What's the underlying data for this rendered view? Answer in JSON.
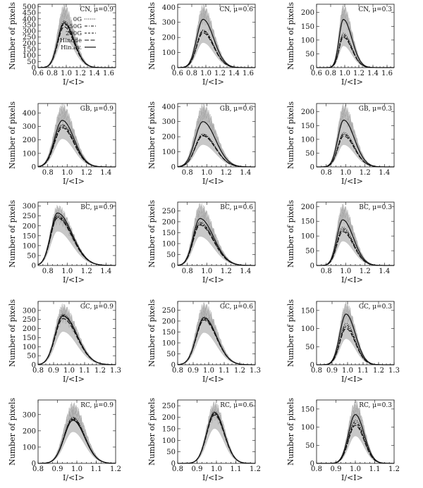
{
  "figure": {
    "legend": [
      {
        "label": "0G",
        "style": "dotted"
      },
      {
        "label": "50G",
        "style": "dash-dot"
      },
      {
        "label": "200G",
        "style": "dashed"
      },
      {
        "label": "Hinode",
        "style": "long-dash"
      },
      {
        "label": "Hin.av.",
        "style": "solid"
      }
    ],
    "colors": {
      "band": "#c8c8c8",
      "lines": "#111111"
    }
  },
  "chart_data": [
    {
      "type": "line",
      "region": "CN",
      "mu_label": "CN, μ=0.9",
      "xlabel": "I/<I>",
      "ylabel": "Number of pixels",
      "xlim": [
        0.6,
        1.7
      ],
      "ylim": [
        0,
        520
      ],
      "xticks": [
        0.6,
        0.8,
        1.0,
        1.2,
        1.4,
        1.6
      ],
      "yticks": [
        0,
        50,
        100,
        150,
        200,
        250,
        300,
        350,
        400,
        450,
        500
      ],
      "ytick_labels": [
        "0",
        "50",
        "100",
        "150",
        "200",
        "250",
        "300",
        "350",
        "400",
        "450",
        "500"
      ],
      "curve": {
        "center": 0.97,
        "sigma_left": 0.09,
        "sigma_right": 0.14
      },
      "peaks": {
        "0G": 385,
        "50G": 375,
        "200G": 355,
        "Hinode": 335,
        "Hin.av.": 365
      },
      "band_max": 510
    },
    {
      "type": "line",
      "region": "CN",
      "mu_label": "CN, μ=0.6",
      "xlabel": "I/<I>",
      "ylabel": "Number of pixels",
      "xlim": [
        0.6,
        1.7
      ],
      "ylim": [
        0,
        420
      ],
      "xticks": [
        0.6,
        0.8,
        1.0,
        1.2,
        1.4,
        1.6
      ],
      "yticks": [
        0,
        100,
        200,
        300,
        400
      ],
      "ytick_labels": [
        "0",
        "100",
        "200",
        "300",
        "400"
      ],
      "curve": {
        "center": 0.96,
        "sigma_left": 0.09,
        "sigma_right": 0.15
      },
      "peaks": {
        "0G": 250,
        "50G": 245,
        "200G": 240,
        "Hinode": 230,
        "Hin.av.": 320
      },
      "band_max": 410
    },
    {
      "type": "line",
      "region": "CN",
      "mu_label": "CN, μ=0.3",
      "xlabel": "I/<I>",
      "ylabel": "Number of pixels",
      "xlim": [
        0.6,
        1.7
      ],
      "ylim": [
        0,
        230
      ],
      "xticks": [
        0.6,
        0.8,
        1.0,
        1.2,
        1.4,
        1.6
      ],
      "yticks": [
        0,
        50,
        100,
        150,
        200
      ],
      "ytick_labels": [
        "0",
        "50",
        "100",
        "150",
        "200"
      ],
      "curve": {
        "center": 0.98,
        "sigma_left": 0.06,
        "sigma_right": 0.12
      },
      "peaks": {
        "0G": 125,
        "50G": 120,
        "200G": 115,
        "Hinode": 110,
        "Hin.av.": 175
      },
      "band_max": 225
    },
    {
      "type": "line",
      "region": "GB",
      "mu_label": "GB, μ=0.9",
      "xlabel": "I/<I>",
      "ylabel": "Number of pixels",
      "xlim": [
        0.7,
        1.5
      ],
      "ylim": [
        0,
        470
      ],
      "xticks": [
        0.8,
        1.0,
        1.2,
        1.4
      ],
      "yticks": [
        0,
        100,
        200,
        300,
        400
      ],
      "ytick_labels": [
        "0",
        "100",
        "200",
        "300",
        "400"
      ],
      "curve": {
        "center": 0.95,
        "sigma_left": 0.08,
        "sigma_right": 0.12
      },
      "peaks": {
        "0G": 315,
        "50G": 310,
        "200G": 300,
        "Hinode": 290,
        "Hin.av.": 345
      },
      "band_max": 460
    },
    {
      "type": "line",
      "region": "GB",
      "mu_label": "GB, μ=0.6",
      "xlabel": "I/<I>",
      "ylabel": "Number of pixels",
      "xlim": [
        0.7,
        1.5
      ],
      "ylim": [
        0,
        420
      ],
      "xticks": [
        0.8,
        1.0,
        1.2,
        1.4
      ],
      "yticks": [
        0,
        100,
        200,
        300,
        400
      ],
      "ytick_labels": [
        "0",
        "100",
        "200",
        "300",
        "400"
      ],
      "curve": {
        "center": 0.96,
        "sigma_left": 0.08,
        "sigma_right": 0.13
      },
      "peaks": {
        "0G": 220,
        "50G": 215,
        "200G": 210,
        "Hinode": 205,
        "Hin.av.": 300
      },
      "band_max": 410
    },
    {
      "type": "line",
      "region": "GB",
      "mu_label": "GB, μ=0.3",
      "xlabel": "I/<I>",
      "ylabel": "Number of pixels",
      "xlim": [
        0.7,
        1.5
      ],
      "ylim": [
        0,
        230
      ],
      "xticks": [
        0.8,
        1.0,
        1.2,
        1.4
      ],
      "yticks": [
        0,
        50,
        100,
        150,
        200
      ],
      "ytick_labels": [
        "0",
        "50",
        "100",
        "150",
        "200"
      ],
      "curve": {
        "center": 0.98,
        "sigma_left": 0.06,
        "sigma_right": 0.11
      },
      "peaks": {
        "0G": 125,
        "50G": 120,
        "200G": 118,
        "Hinode": 112,
        "Hin.av.": 170
      },
      "band_max": 225
    },
    {
      "type": "line",
      "region": "BC",
      "mu_label": "BC, μ=0.9",
      "xlabel": "I/<I>",
      "ylabel": "Number of pixels",
      "xlim": [
        0.7,
        1.5
      ],
      "ylim": [
        0,
        320
      ],
      "xticks": [
        0.8,
        1.0,
        1.2,
        1.4
      ],
      "yticks": [
        0,
        50,
        100,
        150,
        200,
        250,
        300
      ],
      "ytick_labels": [
        "0",
        "50",
        "100",
        "150",
        "200",
        "250",
        "300"
      ],
      "curve": {
        "center": 0.9,
        "sigma_left": 0.07,
        "sigma_right": 0.15
      },
      "peaks": {
        "0G": 255,
        "50G": 250,
        "200G": 245,
        "Hinode": 240,
        "Hin.av.": 265
      },
      "band_max": 300
    },
    {
      "type": "line",
      "region": "BC",
      "mu_label": "BC, μ=0.6",
      "xlabel": "I/<I>",
      "ylabel": "Number of pixels",
      "xlim": [
        0.7,
        1.5
      ],
      "ylim": [
        0,
        290
      ],
      "xticks": [
        0.8,
        1.0,
        1.2,
        1.4
      ],
      "yticks": [
        0,
        50,
        100,
        150,
        200,
        250
      ],
      "ytick_labels": [
        "0",
        "50",
        "100",
        "150",
        "200",
        "250"
      ],
      "curve": {
        "center": 0.93,
        "sigma_left": 0.07,
        "sigma_right": 0.14
      },
      "peaks": {
        "0G": 200,
        "50G": 195,
        "200G": 190,
        "Hinode": 185,
        "Hin.av.": 215
      },
      "band_max": 280
    },
    {
      "type": "line",
      "region": "BC",
      "mu_label": "BC, μ=0.3",
      "xlabel": "I/<I>",
      "ylabel": "Number of pixels",
      "xlim": [
        0.7,
        1.5
      ],
      "ylim": [
        0,
        215
      ],
      "xticks": [
        0.8,
        1.0,
        1.2,
        1.4
      ],
      "yticks": [
        0,
        50,
        100,
        150,
        200
      ],
      "ytick_labels": [
        "0",
        "50",
        "100",
        "150",
        "200"
      ],
      "curve": {
        "center": 0.97,
        "sigma_left": 0.06,
        "sigma_right": 0.11
      },
      "peaks": {
        "0G": 130,
        "50G": 125,
        "200G": 120,
        "Hinode": 115,
        "Hin.av.": 155
      },
      "band_max": 205
    },
    {
      "type": "line",
      "region": "GC",
      "mu_label": "GC, μ=0.9",
      "xlabel": "I/<I>",
      "ylabel": "Number of pixels",
      "xlim": [
        0.8,
        1.3
      ],
      "ylim": [
        0,
        350
      ],
      "xticks": [
        0.8,
        0.9,
        1.0,
        1.1,
        1.2,
        1.3
      ],
      "yticks": [
        0,
        50,
        100,
        150,
        200,
        250,
        300
      ],
      "ytick_labels": [
        "0",
        "50",
        "100",
        "150",
        "200",
        "250",
        "300"
      ],
      "curve": {
        "center": 0.96,
        "sigma_left": 0.05,
        "sigma_right": 0.09
      },
      "peaks": {
        "0G": 280,
        "50G": 275,
        "200G": 268,
        "Hinode": 255,
        "Hin.av.": 270
      },
      "band_max": 330
    },
    {
      "type": "line",
      "region": "GC",
      "mu_label": "GC, μ=0.6",
      "xlabel": "I/<I>",
      "ylabel": "Number of pixels",
      "xlim": [
        0.8,
        1.3
      ],
      "ylim": [
        0,
        290
      ],
      "xticks": [
        0.8,
        0.9,
        1.0,
        1.1,
        1.2,
        1.3
      ],
      "yticks": [
        0,
        50,
        100,
        150,
        200,
        250
      ],
      "ytick_labels": [
        "0",
        "50",
        "100",
        "150",
        "200",
        "250"
      ],
      "curve": {
        "center": 0.97,
        "sigma_left": 0.05,
        "sigma_right": 0.08
      },
      "peaks": {
        "0G": 220,
        "50G": 215,
        "200G": 210,
        "Hinode": 205,
        "Hin.av.": 215
      },
      "band_max": 280
    },
    {
      "type": "line",
      "region": "GC",
      "mu_label": "GC, μ=0.3",
      "xlabel": "I/<I>",
      "ylabel": "Number of pixels",
      "xlim": [
        0.8,
        1.3
      ],
      "ylim": [
        0,
        175
      ],
      "xticks": [
        0.8,
        0.9,
        1.0,
        1.1,
        1.2,
        1.3
      ],
      "yticks": [
        0,
        50,
        100,
        150
      ],
      "ytick_labels": [
        "0",
        "50",
        "100",
        "150"
      ],
      "curve": {
        "center": 0.99,
        "sigma_left": 0.04,
        "sigma_right": 0.06
      },
      "peaks": {
        "0G": 115,
        "50G": 110,
        "200G": 105,
        "Hinode": 100,
        "Hin.av.": 140
      },
      "band_max": 170
    },
    {
      "type": "line",
      "region": "RC",
      "mu_label": "RC, μ=0.9",
      "xlabel": "I/<I>",
      "ylabel": "Number of pixels",
      "xlim": [
        0.8,
        1.2
      ],
      "ylim": [
        0,
        390
      ],
      "xticks": [
        0.8,
        0.9,
        1.0,
        1.1,
        1.2
      ],
      "yticks": [
        0,
        100,
        200,
        300
      ],
      "ytick_labels": [
        "0",
        "100",
        "200",
        "300"
      ],
      "curve": {
        "center": 0.98,
        "sigma_left": 0.045,
        "sigma_right": 0.06
      },
      "peaks": {
        "0G": 285,
        "50G": 280,
        "200G": 275,
        "Hinode": 270,
        "Hin.av.": 265
      },
      "band_max": 370
    },
    {
      "type": "line",
      "region": "RC",
      "mu_label": "RC, μ=0.6",
      "xlabel": "I/<I>",
      "ylabel": "Number of pixels",
      "xlim": [
        0.8,
        1.2
      ],
      "ylim": [
        0,
        275
      ],
      "xticks": [
        0.8,
        0.9,
        1.0,
        1.1,
        1.2
      ],
      "yticks": [
        0,
        50,
        100,
        150,
        200,
        250
      ],
      "ytick_labels": [
        "0",
        "50",
        "100",
        "150",
        "200",
        "250"
      ],
      "curve": {
        "center": 0.99,
        "sigma_left": 0.04,
        "sigma_right": 0.05
      },
      "peaks": {
        "0G": 225,
        "50G": 220,
        "200G": 215,
        "Hinode": 210,
        "Hin.av.": 220
      },
      "band_max": 265
    },
    {
      "type": "line",
      "region": "RC",
      "mu_label": "RC, μ=0.3",
      "xlabel": "I/<I>",
      "ylabel": "Number of pixels",
      "xlim": [
        0.8,
        1.2
      ],
      "ylim": [
        0,
        175
      ],
      "xticks": [
        0.8,
        0.9,
        1.0,
        1.1,
        1.2
      ],
      "yticks": [
        0,
        50,
        100,
        150
      ],
      "ytick_labels": [
        "0",
        "50",
        "100",
        "150"
      ],
      "curve": {
        "center": 1.0,
        "sigma_left": 0.035,
        "sigma_right": 0.045
      },
      "peaks": {
        "0G": 120,
        "50G": 115,
        "200G": 110,
        "Hinode": 105,
        "Hin.av.": 135
      },
      "band_max": 170
    }
  ]
}
